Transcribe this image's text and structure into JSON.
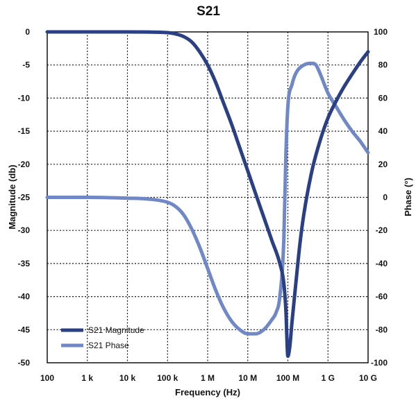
{
  "chart_data": {
    "type": "line",
    "title": "S21",
    "xlabel": "Frequency (Hz)",
    "ylabel_left": "Magnitude (db)",
    "ylabel_right": "Phase (°)",
    "x_scale": "log",
    "xlim": [
      100,
      10000000000
    ],
    "ylim_left": [
      -50,
      0
    ],
    "ylim_right": [
      -100,
      100
    ],
    "x_ticks": [
      {
        "value": 100,
        "label": "100"
      },
      {
        "value": 1000,
        "label": "1 k"
      },
      {
        "value": 10000,
        "label": "10 k"
      },
      {
        "value": 100000,
        "label": "100 k"
      },
      {
        "value": 1000000,
        "label": "1 M"
      },
      {
        "value": 10000000,
        "label": "10 M"
      },
      {
        "value": 100000000,
        "label": "100 M"
      },
      {
        "value": 1000000000,
        "label": "1 G"
      },
      {
        "value": 10000000000,
        "label": "10 G"
      }
    ],
    "y_ticks_left": [
      0,
      -5,
      -10,
      -15,
      -20,
      -25,
      -30,
      -35,
      -40,
      -45,
      -50
    ],
    "y_ticks_right": [
      100,
      80,
      60,
      40,
      20,
      0,
      -20,
      -40,
      -60,
      -80,
      -100
    ],
    "grid": true,
    "legend_position": "bottom-left",
    "series": [
      {
        "name": "S21 Magnitude",
        "axis": "left",
        "color": "#2b3f85",
        "points": [
          [
            100,
            0
          ],
          [
            1000,
            0
          ],
          [
            10000,
            0
          ],
          [
            100000,
            -0.1
          ],
          [
            158000,
            -0.3
          ],
          [
            251000,
            -0.7
          ],
          [
            398000,
            -1.5
          ],
          [
            631000,
            -3.0
          ],
          [
            1000000,
            -5.0
          ],
          [
            1580000,
            -7.6
          ],
          [
            2510000,
            -10.8
          ],
          [
            3980000,
            -14.0
          ],
          [
            6310000,
            -17.5
          ],
          [
            10000000,
            -21.0
          ],
          [
            15800000,
            -24.5
          ],
          [
            25100000,
            -28.0
          ],
          [
            39800000,
            -31.5
          ],
          [
            63100000,
            -35.0
          ],
          [
            79400000,
            -38.0
          ],
          [
            89100000,
            -42.0
          ],
          [
            100000000,
            -49.0
          ],
          [
            112000000,
            -47.5
          ],
          [
            126000000,
            -44.0
          ],
          [
            158000000,
            -38.0
          ],
          [
            200000000,
            -32.0
          ],
          [
            251000000,
            -27.5
          ],
          [
            398000000,
            -21.0
          ],
          [
            631000000,
            -16.5
          ],
          [
            1000000000,
            -13.0
          ],
          [
            1580000000,
            -10.5
          ],
          [
            2510000000,
            -8.3
          ],
          [
            3980000000,
            -6.4
          ],
          [
            6310000000,
            -4.6
          ],
          [
            10000000000,
            -3.0
          ]
        ]
      },
      {
        "name": "S21 Phase",
        "axis": "right",
        "color": "#7088c8",
        "points": [
          [
            100,
            0
          ],
          [
            1000,
            0
          ],
          [
            10000,
            -0.5
          ],
          [
            31600,
            -1.0
          ],
          [
            100000,
            -3.0
          ],
          [
            158000,
            -5.5
          ],
          [
            251000,
            -10.5
          ],
          [
            398000,
            -19.0
          ],
          [
            631000,
            -30.0
          ],
          [
            1000000,
            -43.0
          ],
          [
            1580000,
            -56.0
          ],
          [
            2510000,
            -67.0
          ],
          [
            3980000,
            -75.0
          ],
          [
            6310000,
            -80.0
          ],
          [
            10000000,
            -82.5
          ],
          [
            15800000,
            -82.5
          ],
          [
            25100000,
            -80.0
          ],
          [
            39800000,
            -74.0
          ],
          [
            50100000,
            -70.0
          ],
          [
            63100000,
            -60.0
          ],
          [
            79400000,
            -25.0
          ],
          [
            89100000,
            25.0
          ],
          [
            100000000,
            55.0
          ],
          [
            126000000,
            68.0
          ],
          [
            158000000,
            75.0
          ],
          [
            251000000,
            80.0
          ],
          [
            398000000,
            81.0
          ],
          [
            501000000,
            80.0
          ],
          [
            631000000,
            75.0
          ],
          [
            1000000000,
            63.0
          ],
          [
            1580000000,
            55.0
          ],
          [
            2510000000,
            47.0
          ],
          [
            3980000000,
            40.0
          ],
          [
            6310000000,
            34.0
          ],
          [
            10000000000,
            27.0
          ]
        ]
      }
    ]
  }
}
